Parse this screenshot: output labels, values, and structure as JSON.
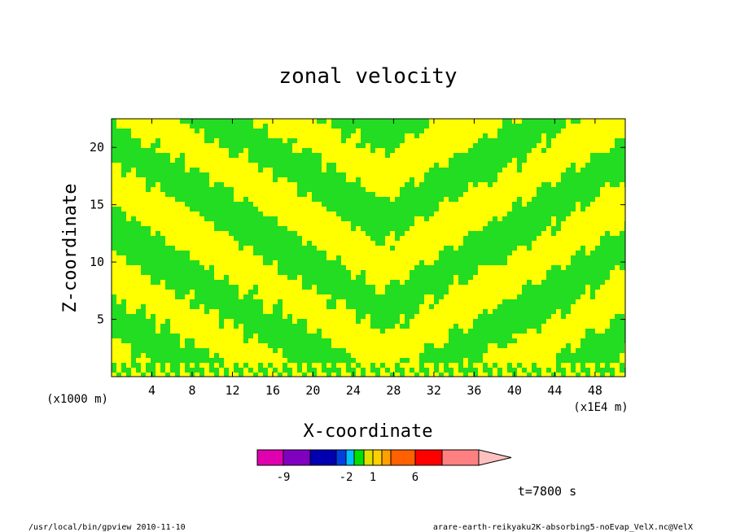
{
  "chart_data": {
    "type": "heatmap",
    "title": "zonal velocity",
    "xlabel": "X-coordinate",
    "ylabel": "Z-coordinate",
    "x_units_label": "(x1E4 m)",
    "y_units_label": "(x1000 m)",
    "x_ticks": [
      "4",
      "8",
      "12",
      "16",
      "20",
      "24",
      "28",
      "32",
      "36",
      "40",
      "44",
      "48"
    ],
    "y_ticks": [
      "5",
      "10",
      "15",
      "20"
    ],
    "xlim": [
      0,
      51
    ],
    "ylim": [
      0,
      22.5
    ],
    "colorbar": {
      "tick_labels": [
        "-9",
        "-2",
        "1",
        "6"
      ],
      "colors": [
        "#e000b0",
        "#8000c0",
        "#0000b0",
        "#0040e0",
        "#00c0ff",
        "#00e000",
        "#e0e000",
        "#ffd000",
        "#ffa000",
        "#ff6000",
        "#ff0000",
        "#ff8080",
        "#ffc0c0"
      ]
    },
    "field_colors": {
      "negative_small": "#22dd22",
      "positive_small": "#ffff00",
      "contour": "#000000"
    },
    "time_label": "t=7800 s"
  },
  "footer": {
    "left": "/usr/local/bin/gpview  2010-11-10",
    "right": "arare-earth-reikyaku2K-absorbing5-noEvap_VelX.nc@VelX"
  }
}
